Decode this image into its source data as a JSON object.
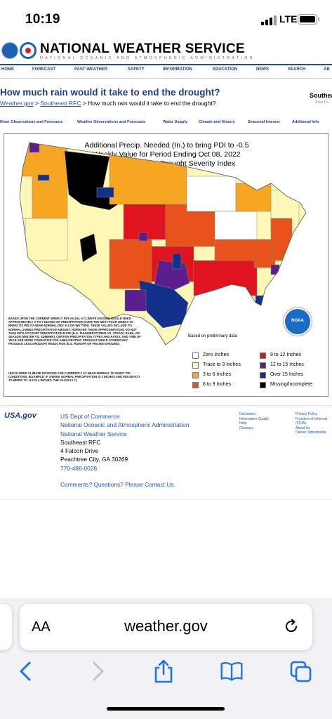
{
  "status_bar": {
    "time": "10:19",
    "network": "LTE"
  },
  "header": {
    "title": "NATIONAL WEATHER SERVICE",
    "subtitle": "NATIONAL OCEANIC AND ATMOSPHERIC ADMINISTRATION",
    "nav": [
      "HOME",
      "FORECAST",
      "PAST WEATHER",
      "SAFETY",
      "INFORMATION",
      "EDUCATION",
      "NEWS",
      "SEARCH",
      "AB"
    ]
  },
  "page": {
    "title": "How much rain would it take to end the drought?",
    "breadcrumb": {
      "link1": "Weather.gov",
      "sep1": " > ",
      "link2": "Southeast RFC",
      "rest": " > How much rain would it take to end the drought?"
    },
    "side_title": "Southea",
    "side_subtitle": "River Fo"
  },
  "subnav": [
    "River Observations and Forecasts",
    "Weather Observations and Forecasts",
    "Water Supply",
    "Climate and History",
    "Seasonal Interest",
    "Additional Info"
  ],
  "map": {
    "title_lines": [
      "Additional Precip. Needed (In.) to bring PDI to -0.5",
      "Weekly Value for Period Ending Oct 08, 2022",
      "Long Term Palmer Drought Severity Index"
    ],
    "fine_print": "BASED UPON THE CURRENT WEEKLY PDI VALUE, A CLIMATE DIVISION WOULD NEED APPROXIMATELY X TO Y INCHES OF PRECIPITATION OVER THE NEXT FOUR WEEKS TO BRING ITS PDI TO NEAR-NORMAL (PDI -0.5 OR WETTER). THESE VALUES INCLUDE ITS NORMAL 4-WEEK PRECIPITATION AMOUNT. HOWEVER THESE APPROXIMATIONS DO NOT TAKE INTO ACCOUNT PRECIPITATION RATE (E.G. THUNDERSTORMS VS. STEADY RAIN), OR SEASON (WINTER VS. SUMMER). CERTAIN PRECIPITATION TYPES AND RATES, AND TIME OF YEAR ARE MORE CONDUCIVE FOR AMELIORATING DROUGHT WHILE OTHERS MAY PRODUCE LESS DROUGHT REDUCTION (E.G. RUNOFF OR FROZEN GROUND).",
    "fine_print2": "UNCOLORED CLIMATE DIVISIONS ARE CURRENTLY AT NEAR-NORMAL TO MOIST PDI CONDITIONS. (EXAMPLE: IF 4-WEEK NORMAL PRECIPITATION IS 3 INCHES AND PDI DEFICIT TO BRING TO -0.5 IS 4 INCHES, THE VALUE IS 7)",
    "preliminary_note": "Based on preliminary data",
    "noaa_label": "NOAA",
    "legend": [
      {
        "label": "Zero Inches",
        "color": "#ffffff"
      },
      {
        "label": "9 to 12 Inches",
        "color": "#e0141e"
      },
      {
        "label": "Trace to 3 Inches",
        "color": "#fff7b8"
      },
      {
        "label": "12 to 15 Inches",
        "color": "#5a1f8c"
      },
      {
        "label": "3 to 6 Inches",
        "color": "#f6a623"
      },
      {
        "label": "Over 15 Inches",
        "color": "#13318a"
      },
      {
        "label": "6 to 9 Inches",
        "color": "#e8531b"
      },
      {
        "label": "Missing/Incomplete",
        "color": "#000000"
      }
    ]
  },
  "footer": {
    "usa_gov": "USA.gov",
    "lines": [
      "US Dept of Commerce",
      "National Oceanic and Atmospheric Administration",
      "National Weather Service",
      "Southeast RFC",
      "4 Falcon Drive",
      "Peachtree City, GA 30269",
      "770-486-0028"
    ],
    "comments": "Comments? Questions? Please Contact Us.",
    "col2": [
      "Disclaimer",
      "Information Quality",
      "Help",
      "Glossary"
    ],
    "col3": [
      "Privacy Policy",
      "Freedom of Informat",
      "(FOIA)",
      "About Us",
      "Career Opportunitie"
    ]
  },
  "safari": {
    "aa_label": "AA",
    "url": "weather.gov"
  }
}
